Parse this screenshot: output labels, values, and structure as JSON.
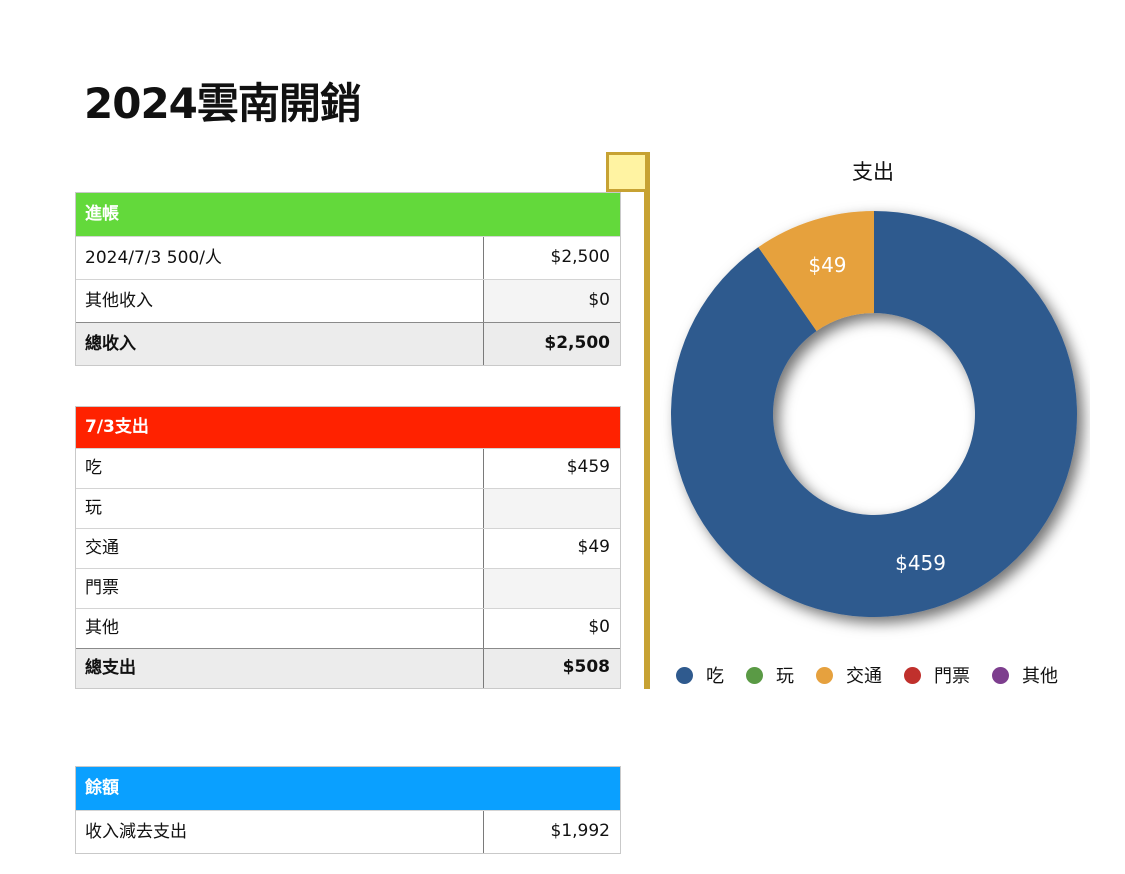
{
  "title": "2024雲南開銷",
  "income": {
    "header": "進帳",
    "rows": [
      {
        "label": "2024/7/3  500/人",
        "value": "$2,500"
      },
      {
        "label": "其他收入",
        "value": "$0"
      }
    ],
    "total": {
      "label": "總收入",
      "value": "$2,500"
    }
  },
  "expense": {
    "header": "7/3支出",
    "rows": [
      {
        "label": "吃",
        "value": "$459"
      },
      {
        "label": "玩",
        "value": ""
      },
      {
        "label": "交通",
        "value": "$49"
      },
      {
        "label": "門票",
        "value": ""
      },
      {
        "label": "其他",
        "value": "$0"
      }
    ],
    "total": {
      "label": "總支出",
      "value": "$508"
    }
  },
  "balance": {
    "header": "餘額",
    "rows": [
      {
        "label": "收入減去支出",
        "value": "$1,992"
      }
    ]
  },
  "chart_data": {
    "type": "pie",
    "title": "支出",
    "donut": true,
    "categories": [
      "吃",
      "玩",
      "交通",
      "門票",
      "其他"
    ],
    "values": [
      459,
      0,
      49,
      0,
      0
    ],
    "data_labels": [
      "$459",
      "",
      "$49",
      "",
      ""
    ],
    "colors": [
      "#2f5a8e",
      "#5a9a45",
      "#e6a13e",
      "#c0302c",
      "#7d3e8e"
    ],
    "legend_position": "bottom"
  }
}
